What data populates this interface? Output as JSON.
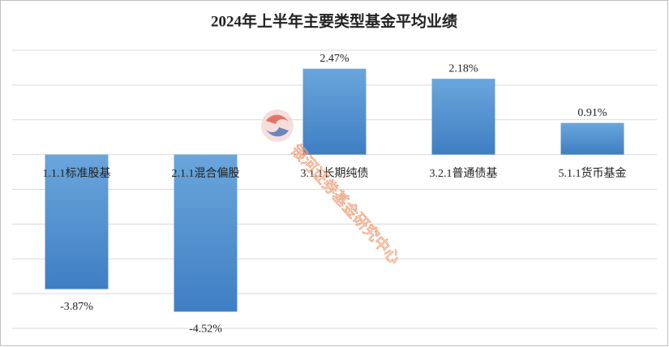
{
  "chart_data": {
    "type": "bar",
    "title": "2024年上半年主要类型基金平均业绩",
    "categories": [
      "1.1.1标准股基",
      "2.1.1混合偏股",
      "3.1.1长期纯债",
      "3.2.1普通债基",
      "5.1.1货币基金"
    ],
    "values": [
      -3.87,
      -4.52,
      2.47,
      2.18,
      0.91
    ],
    "value_labels": [
      "-3.87%",
      "-4.52%",
      "2.47%",
      "2.18%",
      "0.91%"
    ],
    "color": "#5b9bd5",
    "ylim": [
      -5,
      3
    ],
    "yticks": [
      -5,
      -4,
      -3,
      -2,
      -1,
      0,
      1,
      2,
      3
    ],
    "grid": true,
    "watermark": "银河证券基金研究中心"
  }
}
